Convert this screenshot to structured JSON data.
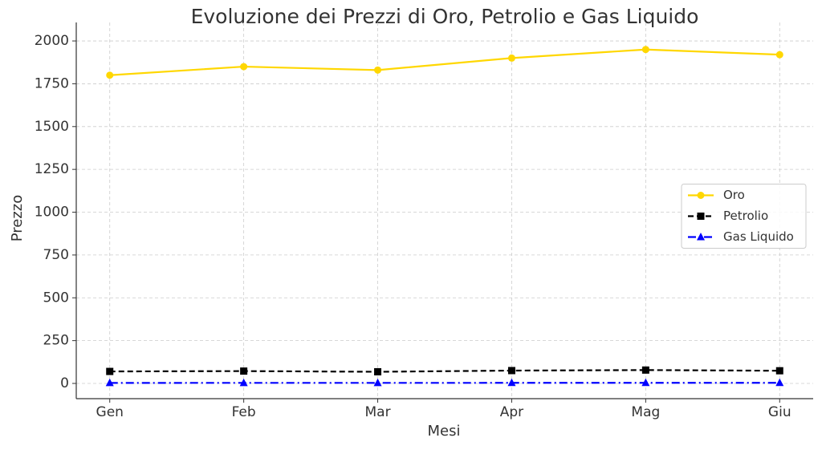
{
  "chart_data": {
    "type": "line",
    "title": "Evoluzione dei Prezzi di Oro, Petrolio e Gas Liquido",
    "x_label": "Mesi",
    "y_label": "Prezzo",
    "categories": [
      "Gen",
      "Feb",
      "Mar",
      "Apr",
      "Mag",
      "Giu"
    ],
    "series": [
      {
        "name": "Oro",
        "color": "#ffd700",
        "marker": "circle",
        "linestyle": "solid",
        "values": [
          1800,
          1850,
          1830,
          1900,
          1950,
          1920
        ]
      },
      {
        "name": "Petrolio",
        "color": "#000000",
        "marker": "square",
        "linestyle": "dashed",
        "values": [
          70,
          72,
          68,
          75,
          78,
          74
        ]
      },
      {
        "name": "Gas Liquido",
        "color": "#0000ff",
        "marker": "triangle",
        "linestyle": "dashdot",
        "values": [
          3,
          3.2,
          3.1,
          3.4,
          3.6,
          3.5
        ]
      }
    ],
    "ylim": [
      -89,
      2108
    ],
    "yticks": [
      0,
      250,
      500,
      750,
      1000,
      1250,
      1500,
      1750,
      2000
    ],
    "grid": true,
    "legend": "center right"
  }
}
